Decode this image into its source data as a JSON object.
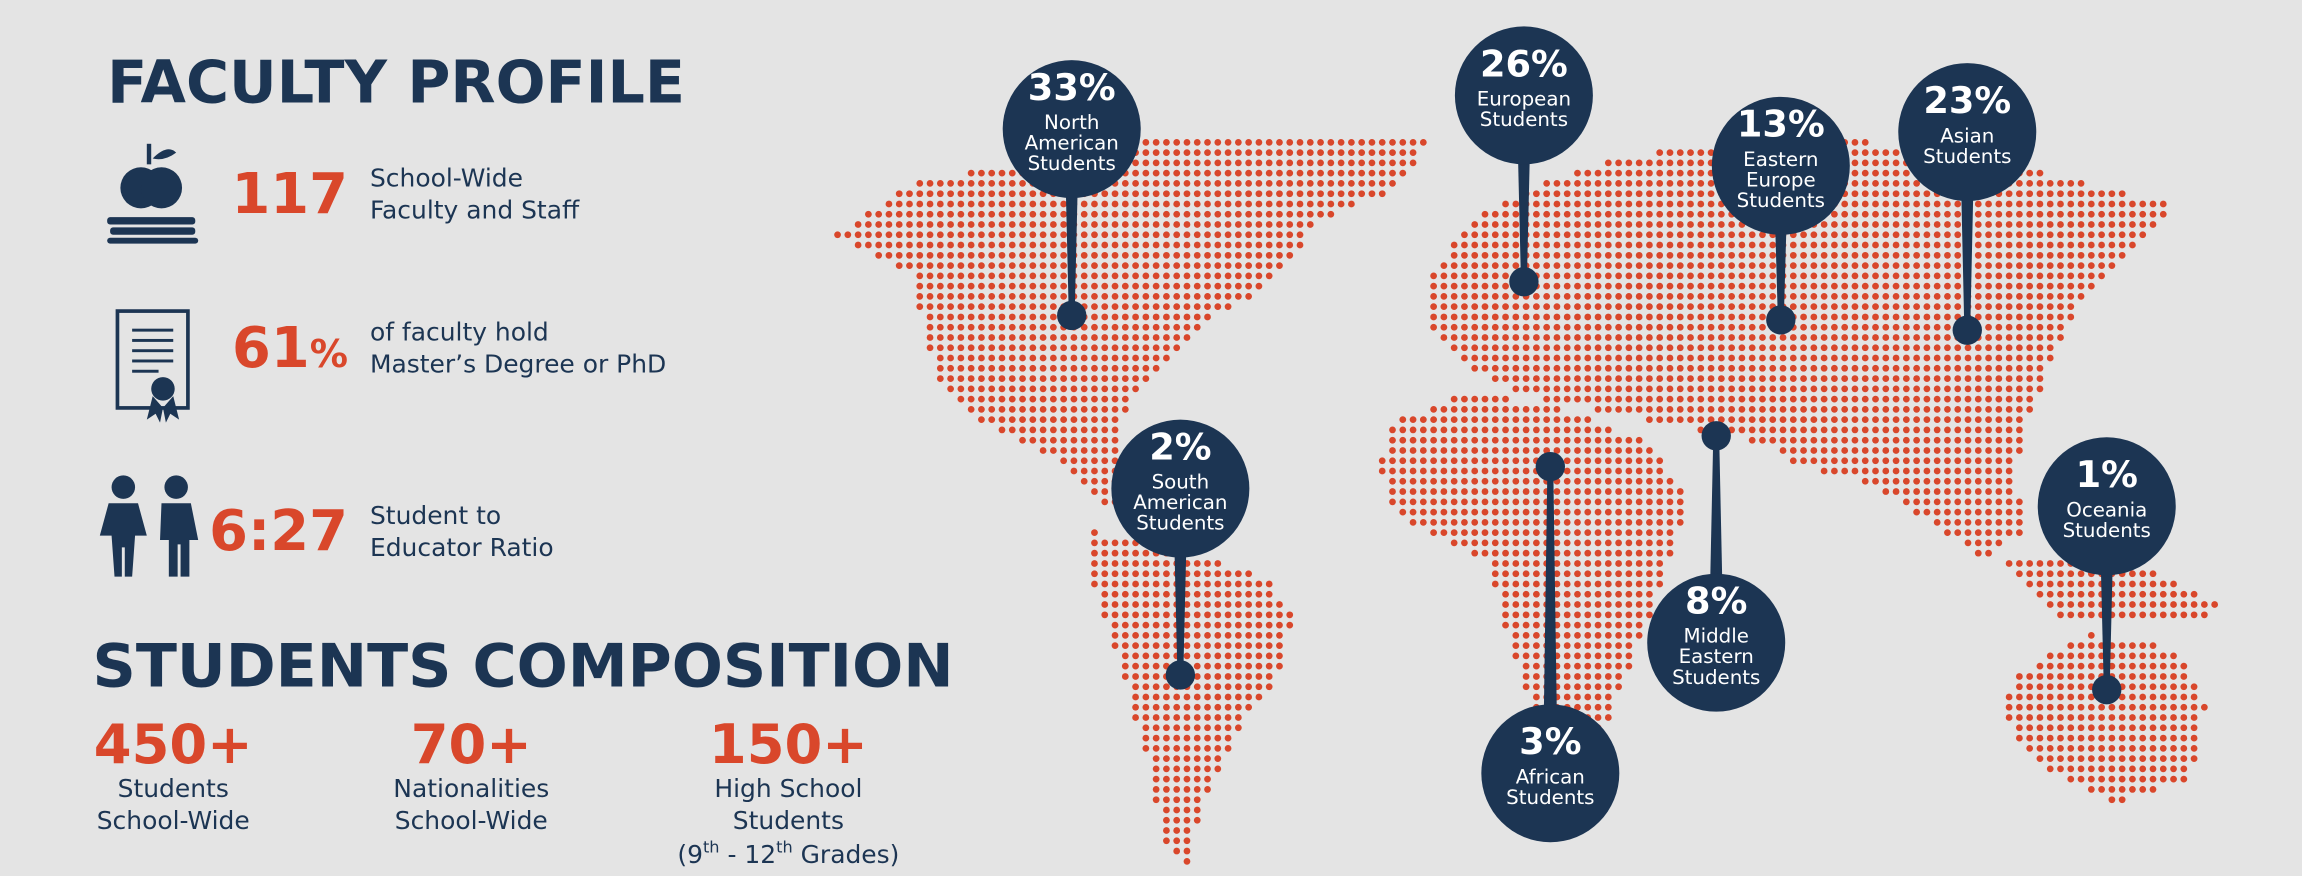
{
  "faculty_profile": {
    "title": "FACULTY PROFILE",
    "items": [
      {
        "value": "117",
        "label": [
          "School-Wide",
          "Faculty and Staff"
        ]
      },
      {
        "value": "61",
        "unit": "%",
        "label": [
          "of faculty hold",
          "Master’s Degree or PhD"
        ]
      },
      {
        "value": "6:27",
        "label": [
          "Student to",
          "Educator Ratio"
        ]
      }
    ]
  },
  "students_composition": {
    "title": "STUDENTS COMPOSITION",
    "stats": [
      {
        "value": "450+",
        "label": [
          "Students",
          "School-Wide"
        ]
      },
      {
        "value": "70+",
        "label": [
          "Nationalities",
          "School-Wide"
        ]
      },
      {
        "value": "150+",
        "label": [
          "High School",
          "Students"
        ],
        "grades": [
          "(9",
          "th",
          " - 12",
          "th",
          " Grades)"
        ]
      }
    ]
  },
  "map": {
    "pins": [
      {
        "percent": "33%",
        "label": [
          "North",
          "American",
          "Students"
        ]
      },
      {
        "percent": "26%",
        "label": [
          "European",
          "Students"
        ]
      },
      {
        "percent": "13%",
        "label": [
          "Eastern",
          "Europe",
          "Students"
        ]
      },
      {
        "percent": "23%",
        "label": [
          "Asian",
          "Students"
        ]
      },
      {
        "percent": "2%",
        "label": [
          "South",
          "American",
          "Students"
        ]
      },
      {
        "percent": "1%",
        "label": [
          "Oceania",
          "Students"
        ]
      },
      {
        "percent": "8%",
        "label": [
          "Middle",
          "Eastern",
          "Students"
        ]
      },
      {
        "percent": "3%",
        "label": [
          "African",
          "Students"
        ]
      }
    ]
  }
}
